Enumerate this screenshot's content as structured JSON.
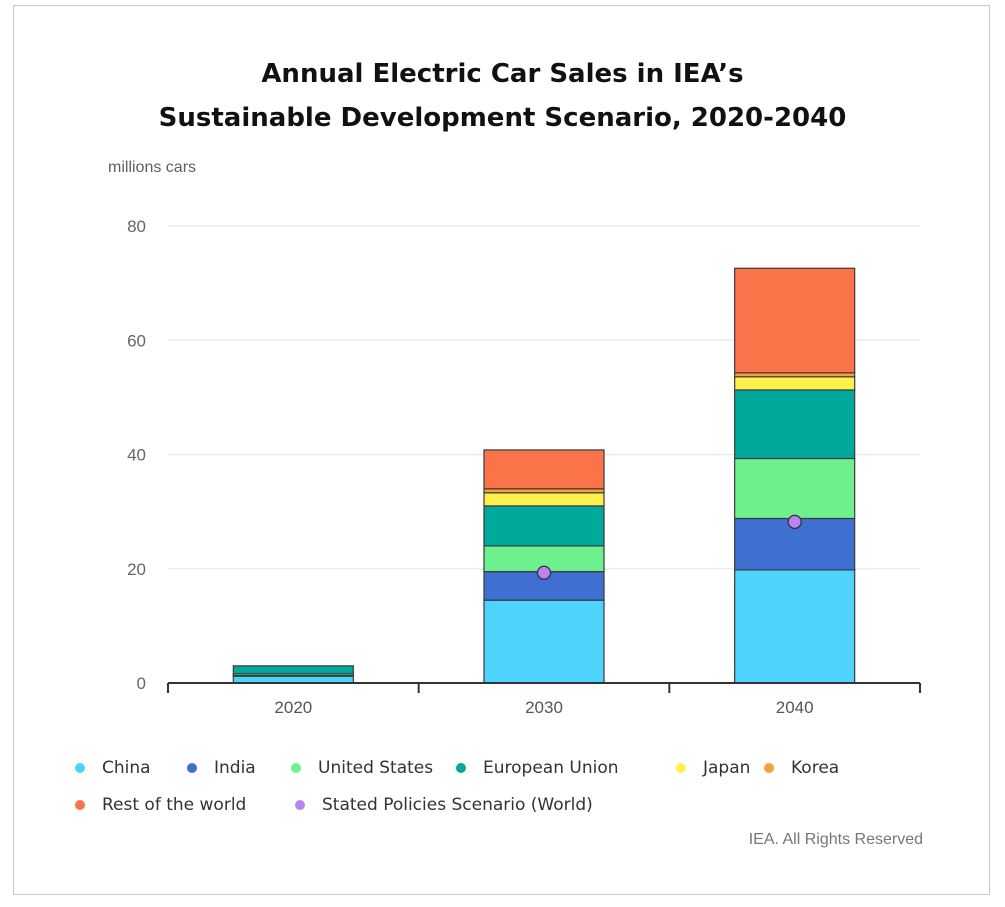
{
  "chart_data": {
    "type": "bar",
    "stacked": true,
    "title_lines": [
      "Annual Electric Car Sales in IEA’s",
      "Sustainable Development Scenario, 2020-2040"
    ],
    "unit_label": "millions cars",
    "categories": [
      "2020",
      "2030",
      "2040"
    ],
    "ylim": [
      0,
      80
    ],
    "yticks": [
      0,
      20,
      40,
      60,
      80
    ],
    "grid": true,
    "legend_position": "bottom",
    "series": [
      {
        "name": "China",
        "color": "#4dd3fc",
        "values": [
          1.2,
          14.5,
          19.8
        ]
      },
      {
        "name": "India",
        "color": "#3e6fd1",
        "values": [
          0.1,
          5.0,
          9.0
        ]
      },
      {
        "name": "United States",
        "color": "#6ef08f",
        "values": [
          0.3,
          4.5,
          10.5
        ]
      },
      {
        "name": "European Union",
        "color": "#00a99c",
        "values": [
          1.4,
          7.0,
          12.0
        ]
      },
      {
        "name": "Japan",
        "color": "#fff04d",
        "values": [
          0.0,
          2.3,
          2.3
        ]
      },
      {
        "name": "Korea",
        "color": "#f7a03c",
        "values": [
          0.0,
          0.7,
          0.7
        ]
      },
      {
        "name": "Rest of the world",
        "color": "#fb7349",
        "values": [
          0.0,
          6.8,
          18.3
        ]
      }
    ],
    "markers": {
      "name": "Stated Policies Scenario (World)",
      "color": "#b784f0",
      "values": [
        null,
        19.3,
        28.2
      ]
    }
  },
  "legend_rows": [
    [
      "China",
      "India",
      "United States",
      "European Union",
      "Japan",
      "Korea"
    ],
    [
      "Rest of the world",
      "Stated Policies Scenario (World)"
    ]
  ],
  "footer": "IEA. All Rights Reserved"
}
